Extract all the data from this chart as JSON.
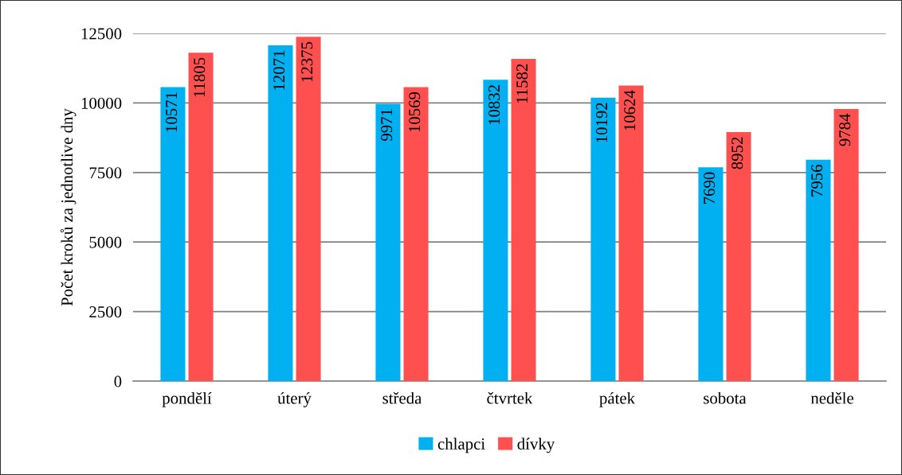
{
  "chart_data": {
    "type": "bar",
    "ylabel": "Počet kroků za jednotlive dny",
    "categories": [
      "pondělí",
      "úterý",
      "středa",
      "čtvrtek",
      "pátek",
      "sobota",
      "neděle"
    ],
    "series": [
      {
        "name": "chlapci",
        "color": "#00b0f0",
        "values": [
          10571,
          12071,
          9971,
          10832,
          10192,
          7690,
          7956
        ]
      },
      {
        "name": "dívky",
        "color": "#ff5050",
        "values": [
          11805,
          12375,
          10569,
          11582,
          10624,
          8952,
          9784
        ]
      }
    ],
    "ylim": [
      0,
      12500
    ],
    "yticks": [
      0,
      2500,
      5000,
      7500,
      10000,
      12500
    ],
    "grid": "y",
    "legend": "bottom",
    "data_labels": true
  }
}
